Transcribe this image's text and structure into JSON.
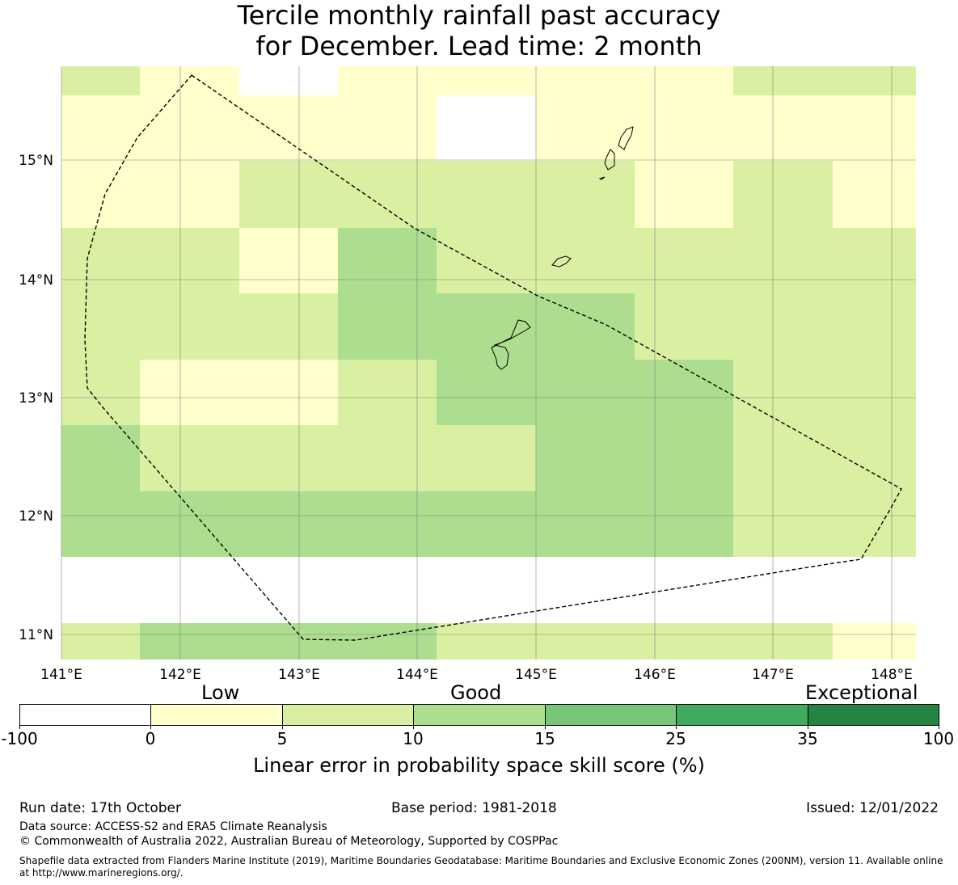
{
  "title": {
    "line1": "Tercile monthly rainfall past accuracy",
    "line2": "for December. Lead time: 2 month"
  },
  "map": {
    "lon_labels": [
      "141°E",
      "142°E",
      "143°E",
      "144°E",
      "145°E",
      "146°E",
      "147°E",
      "148°E"
    ],
    "lat_labels": [
      "15°N",
      "14°N",
      "13°N",
      "12°N",
      "11°N"
    ],
    "grid_rows": [
      [
        "c5",
        "c0",
        "nd",
        "c0",
        "c0",
        "c0",
        "c0",
        "c5",
        "c5"
      ],
      [
        "c0",
        "c0",
        "c0",
        "c0",
        "nd",
        "c0",
        "c0",
        "c0",
        "c0"
      ],
      [
        "c0",
        "c0",
        "c5",
        "c5",
        "c5",
        "c5",
        "c0",
        "c5",
        "c0"
      ],
      [
        "c5",
        "c5",
        "c0",
        "c10",
        "c5",
        "c5",
        "c5",
        "c5",
        "c5"
      ],
      [
        "c5",
        "c5",
        "c5",
        "c10",
        "c10",
        "c10",
        "c5",
        "c5",
        "c5"
      ],
      [
        "c5",
        "c0",
        "c0",
        "c5",
        "c10",
        "c10",
        "c10",
        "c5",
        "c5"
      ],
      [
        "c10",
        "c5",
        "c5",
        "c5",
        "c5",
        "c10",
        "c10",
        "c5",
        "c5"
      ],
      [
        "c10",
        "c10",
        "c10",
        "c10",
        "c10",
        "c10",
        "c10",
        "c5",
        "c5"
      ],
      [
        "c5",
        "c10",
        "c10",
        "c10",
        "c5",
        "c5",
        "c5",
        "c5",
        "c0"
      ]
    ],
    "cell_colors": {
      "nd": "#ffffff",
      "c0": "#ffffcc",
      "c5": "#d9f0a3",
      "c10": "#addd8e"
    },
    "grid_line_color": "#808080",
    "boundary_color": "#000000"
  },
  "colorbar": {
    "category_labels": [
      "Low",
      "Good",
      "Exceptional"
    ],
    "ticks": [
      "-100",
      "0",
      "5",
      "10",
      "15",
      "25",
      "35",
      "100"
    ],
    "colors": [
      "#ffffff",
      "#ffffcc",
      "#d9f0a3",
      "#addd8e",
      "#78c679",
      "#41ab5d",
      "#238443"
    ],
    "label": "Linear error in probability space skill score (%)"
  },
  "footer": {
    "run_date": "Run date: 17th October",
    "base_period": "Base period: 1981-2018",
    "issued": "Issued: 12/01/2022",
    "data_source": "Data source: ACCESS-S2 and ERA5 Climate Reanalysis",
    "copyright": "© Commonwealth of Australia 2022, Australian Bureau of Meteorology, Supported by COSPPac",
    "shapefile_line1": "Shapefile data extracted from Flanders Marine Institute (2019), Maritime Boundaries Geodatabase: Maritime Boundaries and Exclusive Economic Zones (200NM), version 11. Available online",
    "shapefile_line2": "at http://www.marineregions.org/."
  }
}
